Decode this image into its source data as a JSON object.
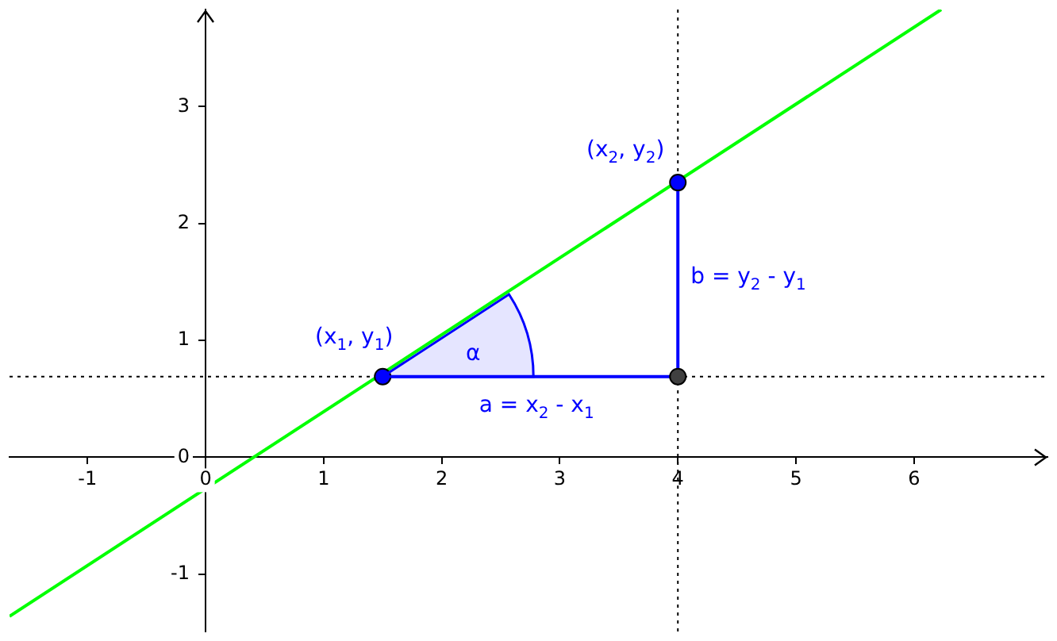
{
  "chart_data": {
    "type": "line",
    "xlim": [
      -1.66,
      7.13
    ],
    "ylim": [
      -1.49,
      3.83
    ],
    "xticks": [
      -1,
      0,
      1,
      2,
      3,
      4,
      5,
      6
    ],
    "yticks": [
      -1,
      0,
      1,
      2,
      3
    ],
    "grid": false,
    "legend": false,
    "series": [
      {
        "color": "#00ff00",
        "marker": "none",
        "x": [
          -1.66,
          6.23
        ],
        "values": [
          -1.36,
          3.83
        ]
      },
      {
        "color": "#0000ff",
        "marker": "none",
        "x": [
          1.5,
          4
        ],
        "values": [
          0.69,
          0.69
        ]
      },
      {
        "color": "#0000ff",
        "marker": "none",
        "x": [
          4,
          4
        ],
        "values": [
          0.69,
          2.35
        ]
      },
      {
        "type": "scatter",
        "marker": "circle",
        "color": "#0000ff",
        "x": [
          1.5,
          4
        ],
        "values": [
          0.69,
          2.35
        ]
      },
      {
        "type": "scatter",
        "marker": "circle",
        "color": "#404040",
        "x": [
          4
        ],
        "values": [
          0.69
        ]
      }
    ],
    "ref_lines": [
      {
        "axis": "y",
        "value": 0.69,
        "color": "#000000",
        "line_style": "dotted"
      },
      {
        "axis": "x",
        "value": 4,
        "color": "#000000",
        "line_style": "dotted"
      }
    ],
    "annotations": [
      {
        "text": "(x$_{1}$, y$_{1}$)",
        "x": 1.5,
        "y": 0.69
      },
      {
        "text": "(x$_{2}$, y$_{2}$)",
        "x": 4,
        "y": 2.35
      },
      "α",
      {
        "text": "a = x$_{2}$ - x$_{1}$",
        "x": 2.75,
        "y": 0.69
      },
      "b = y$_{2}$ - y$_{1}$"
    ]
  }
}
